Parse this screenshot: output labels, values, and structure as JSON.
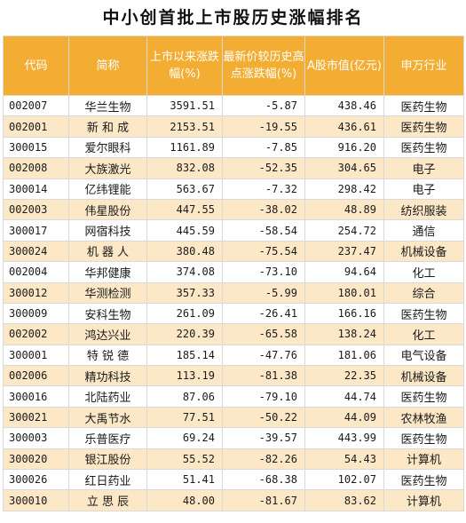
{
  "title": "中小创首批上市股历史涨幅排名",
  "headers": [
    "代码",
    "简称",
    "上市以来涨跌幅(%)",
    "最新价较历史高点涨跌幅(%)",
    "A股市值(亿元)",
    "申万行业"
  ],
  "rows": [
    {
      "code": "002007",
      "name": "华兰生物",
      "gain": "3591.51",
      "from_high": "-5.87",
      "mcap": "438.46",
      "industry": "医药生物"
    },
    {
      "code": "002001",
      "name": "新 和 成",
      "gain": "2153.51",
      "from_high": "-19.55",
      "mcap": "436.61",
      "industry": "医药生物"
    },
    {
      "code": "300015",
      "name": "爱尔眼科",
      "gain": "1161.89",
      "from_high": "-7.85",
      "mcap": "916.20",
      "industry": "医药生物"
    },
    {
      "code": "002008",
      "name": "大族激光",
      "gain": "832.08",
      "from_high": "-52.35",
      "mcap": "304.65",
      "industry": "电子"
    },
    {
      "code": "300014",
      "name": "亿纬锂能",
      "gain": "563.67",
      "from_high": "-7.32",
      "mcap": "298.42",
      "industry": "电子"
    },
    {
      "code": "002003",
      "name": "伟星股份",
      "gain": "447.55",
      "from_high": "-38.02",
      "mcap": "48.89",
      "industry": "纺织服装"
    },
    {
      "code": "300017",
      "name": "网宿科技",
      "gain": "445.59",
      "from_high": "-58.54",
      "mcap": "254.72",
      "industry": "通信"
    },
    {
      "code": "300024",
      "name": "机 器 人",
      "gain": "380.48",
      "from_high": "-75.54",
      "mcap": "237.47",
      "industry": "机械设备"
    },
    {
      "code": "002004",
      "name": "华邦健康",
      "gain": "374.08",
      "from_high": "-73.10",
      "mcap": "94.64",
      "industry": "化工"
    },
    {
      "code": "300012",
      "name": "华测检测",
      "gain": "357.33",
      "from_high": "-5.99",
      "mcap": "180.01",
      "industry": "综合"
    },
    {
      "code": "300009",
      "name": "安科生物",
      "gain": "261.09",
      "from_high": "-26.41",
      "mcap": "166.16",
      "industry": "医药生物"
    },
    {
      "code": "002002",
      "name": "鸿达兴业",
      "gain": "220.39",
      "from_high": "-65.58",
      "mcap": "138.24",
      "industry": "化工"
    },
    {
      "code": "300001",
      "name": "特 锐 德",
      "gain": "185.14",
      "from_high": "-47.76",
      "mcap": "181.06",
      "industry": "电气设备"
    },
    {
      "code": "002006",
      "name": "精功科技",
      "gain": "113.19",
      "from_high": "-81.38",
      "mcap": "22.35",
      "industry": "机械设备"
    },
    {
      "code": "300016",
      "name": "北陆药业",
      "gain": "87.06",
      "from_high": "-79.10",
      "mcap": "44.74",
      "industry": "医药生物"
    },
    {
      "code": "300021",
      "name": "大禹节水",
      "gain": "77.51",
      "from_high": "-50.22",
      "mcap": "44.09",
      "industry": "农林牧渔"
    },
    {
      "code": "300003",
      "name": "乐普医疗",
      "gain": "69.24",
      "from_high": "-39.57",
      "mcap": "443.99",
      "industry": "医药生物"
    },
    {
      "code": "300020",
      "name": "银江股份",
      "gain": "55.52",
      "from_high": "-82.26",
      "mcap": "54.43",
      "industry": "计算机"
    },
    {
      "code": "300026",
      "name": "红日药业",
      "gain": "51.41",
      "from_high": "-68.38",
      "mcap": "102.07",
      "industry": "医药生物"
    },
    {
      "code": "300010",
      "name": "立 思 辰",
      "gain": "48.00",
      "from_high": "-81.67",
      "mcap": "83.62",
      "industry": "计算机"
    }
  ],
  "colors": {
    "header_bg": "#f4ad33",
    "header_text": "#ffffff",
    "stripe": "#fce8c6"
  }
}
